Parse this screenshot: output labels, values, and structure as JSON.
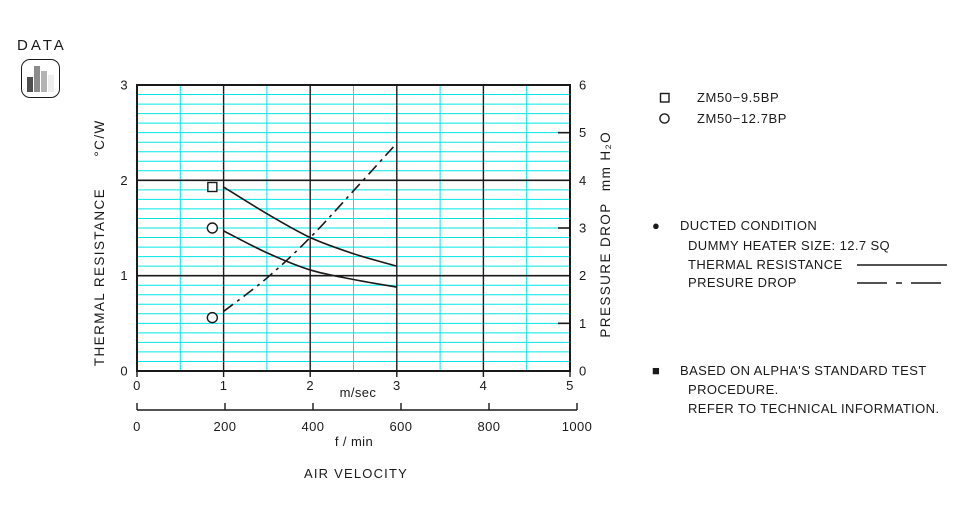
{
  "data_badge": {
    "label": "DATA",
    "icon": "bar-chart-icon"
  },
  "chart_data": {
    "type": "line",
    "title": "",
    "x_axis": {
      "label": "m/sec",
      "min": 0,
      "max": 5,
      "major_ticks": [
        0,
        1,
        2,
        3,
        4,
        5
      ],
      "minor_step": 0.5
    },
    "x_axis2": {
      "label": "f / min",
      "caption": "AIR VELOCITY",
      "min": 0,
      "max": 1000,
      "ticks": [
        0,
        200,
        400,
        600,
        800,
        1000
      ]
    },
    "y_left": {
      "label": "THERMAL RESISTANCE",
      "unit": "°C/W",
      "min": 0,
      "max": 3,
      "major_ticks": [
        0,
        1,
        2,
        3
      ],
      "minor_step": 0.1
    },
    "y_right": {
      "label": "PRESSURE DROP",
      "unit": "mm H₂O",
      "min": 0,
      "max": 6,
      "ticks": [
        0,
        1,
        2,
        3,
        4,
        5,
        6
      ],
      "inner_tick_values": [
        1,
        3,
        5
      ]
    },
    "grid": true,
    "grid_color": "#00e6e6",
    "line_color": "#1a1a1a",
    "series": [
      {
        "name": "ZM50-9.5BP thermal resistance",
        "axis": "left",
        "style": "solid",
        "marker": "square",
        "marker_point": {
          "x": 0.87,
          "y": 1.93
        },
        "points": [
          [
            1.0,
            1.93
          ],
          [
            1.5,
            1.65
          ],
          [
            2.0,
            1.4
          ],
          [
            2.5,
            1.23
          ],
          [
            3.0,
            1.1
          ]
        ]
      },
      {
        "name": "ZM50-12.7BP thermal resistance",
        "axis": "left",
        "style": "solid",
        "marker": "circle",
        "marker_point": {
          "x": 0.87,
          "y": 1.5
        },
        "points": [
          [
            1.0,
            1.47
          ],
          [
            1.5,
            1.24
          ],
          [
            2.0,
            1.06
          ],
          [
            2.5,
            0.96
          ],
          [
            3.0,
            0.88
          ]
        ]
      },
      {
        "name": "pressure drop",
        "axis": "right",
        "style": "dash-dot",
        "marker": "circle",
        "marker_point": {
          "x": 0.87,
          "y": 1.12
        },
        "points": [
          [
            1.0,
            1.25
          ],
          [
            1.5,
            1.95
          ],
          [
            2.0,
            2.8
          ],
          [
            2.5,
            3.78
          ],
          [
            3.0,
            4.78
          ]
        ]
      }
    ]
  },
  "legend": {
    "items": [
      {
        "marker": "square",
        "label": "ZM50−9.5BP"
      },
      {
        "marker": "circle",
        "label": "ZM50−12.7BP"
      }
    ]
  },
  "notes": {
    "ducted": {
      "bullet": "●",
      "title": "DUCTED CONDITION",
      "line1": "DUMMY HEATER SIZE: 12.7 SQ",
      "thermal_label": "THERMAL RESISTANCE",
      "pressure_label": "PRESURE DROP"
    },
    "test": {
      "bullet": "■",
      "line1": "BASED ON ALPHA'S STANDARD TEST",
      "line2": "PROCEDURE.",
      "line3": "REFER TO TECHNICAL INFORMATION."
    }
  }
}
